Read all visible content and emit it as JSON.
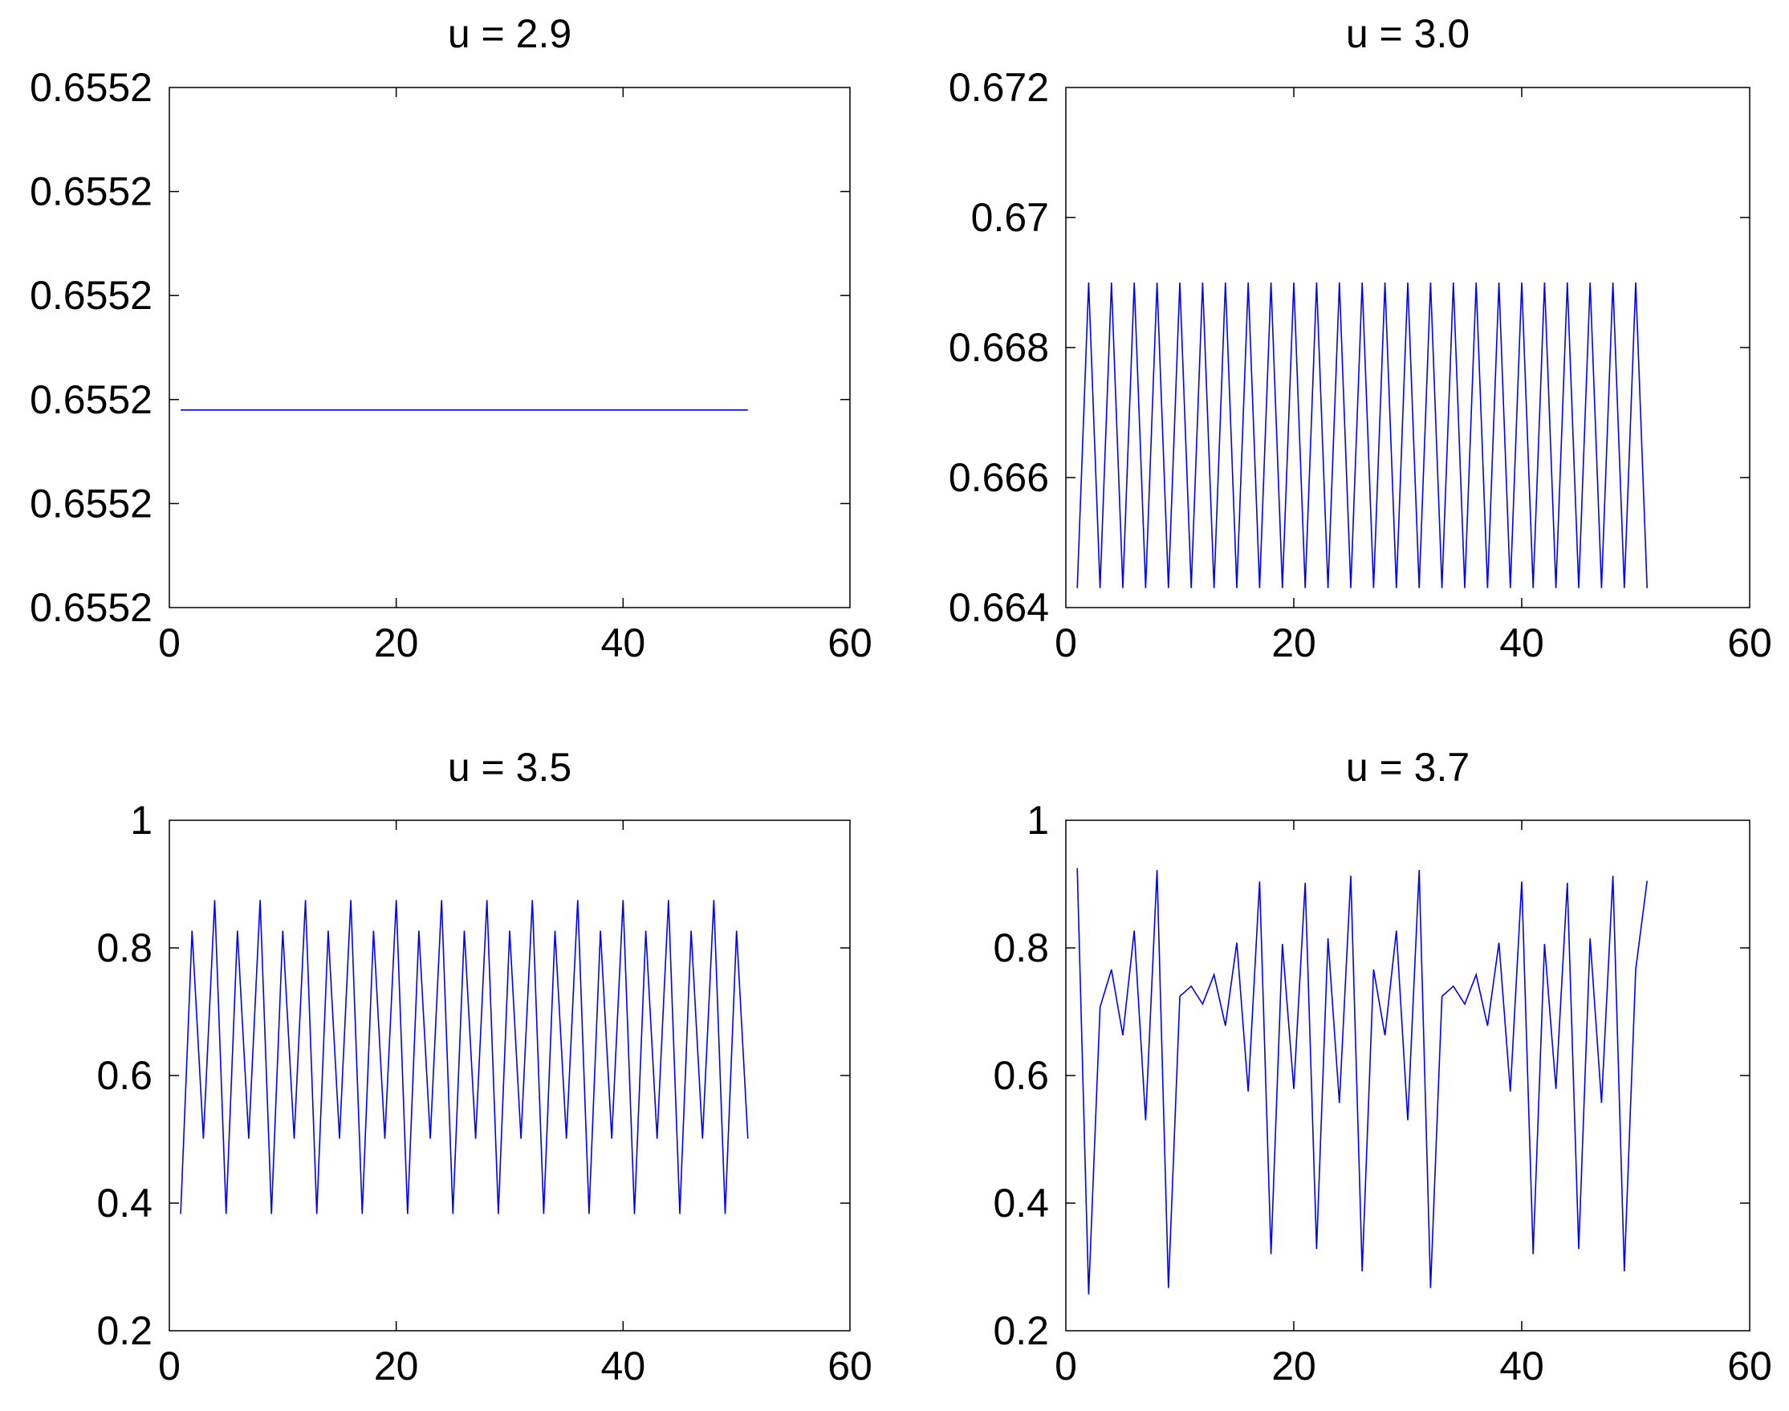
{
  "chart_data": [
    {
      "type": "line",
      "title": "u = 2.9",
      "xlim": [
        0,
        60
      ],
      "ylim": [
        0,
        5
      ],
      "xticks": [
        0,
        20,
        40,
        60
      ],
      "xtick_labels": [
        "0",
        "20",
        "40",
        "60"
      ],
      "yticks": [
        0,
        1,
        2,
        3,
        4,
        5
      ],
      "ytick_labels": [
        "0.6552",
        "0.6552",
        "0.6552",
        "0.6552",
        "0.6552",
        "0.6552"
      ],
      "grid": false,
      "series_color": "#0000ff",
      "x": [
        1,
        51
      ],
      "y": [
        1.9,
        1.9
      ]
    },
    {
      "type": "line",
      "title": "u = 3.0",
      "xlim": [
        0,
        60
      ],
      "ylim": [
        0.664,
        0.672
      ],
      "xticks": [
        0,
        20,
        40,
        60
      ],
      "xtick_labels": [
        "0",
        "20",
        "40",
        "60"
      ],
      "yticks": [
        0.664,
        0.666,
        0.668,
        0.67,
        0.672
      ],
      "ytick_labels": [
        "0.664",
        "0.666",
        "0.668",
        "0.67",
        "0.672"
      ],
      "grid": false,
      "series_color": "#0000ff",
      "x": [
        1,
        2,
        3,
        4,
        5,
        6,
        7,
        8,
        9,
        10,
        11,
        12,
        13,
        14,
        15,
        16,
        17,
        18,
        19,
        20,
        21,
        22,
        23,
        24,
        25,
        26,
        27,
        28,
        29,
        30,
        31,
        32,
        33,
        34,
        35,
        36,
        37,
        38,
        39,
        40,
        41,
        42,
        43,
        44,
        45,
        46,
        47,
        48,
        49,
        50,
        51
      ],
      "y": [
        0.6643,
        0.669,
        0.6643,
        0.669,
        0.6643,
        0.669,
        0.6643,
        0.669,
        0.6643,
        0.669,
        0.6643,
        0.669,
        0.6643,
        0.669,
        0.6643,
        0.669,
        0.6643,
        0.669,
        0.6643,
        0.669,
        0.6643,
        0.669,
        0.6643,
        0.669,
        0.6643,
        0.669,
        0.6643,
        0.669,
        0.6643,
        0.669,
        0.6643,
        0.669,
        0.6643,
        0.669,
        0.6643,
        0.669,
        0.6643,
        0.669,
        0.6643,
        0.669,
        0.6643,
        0.669,
        0.6643,
        0.669,
        0.6643,
        0.669,
        0.6643,
        0.669,
        0.6643,
        0.669,
        0.6643
      ]
    },
    {
      "type": "line",
      "title": "u = 3.5",
      "xlim": [
        0,
        60
      ],
      "ylim": [
        0.2,
        1
      ],
      "xticks": [
        0,
        20,
        40,
        60
      ],
      "xtick_labels": [
        "0",
        "20",
        "40",
        "60"
      ],
      "yticks": [
        0.2,
        0.4,
        0.6,
        0.8,
        1
      ],
      "ytick_labels": [
        "0.2",
        "0.4",
        "0.6",
        "0.8",
        "1"
      ],
      "grid": false,
      "series_color": "#0000ff",
      "x": [
        1,
        2,
        3,
        4,
        5,
        6,
        7,
        8,
        9,
        10,
        11,
        12,
        13,
        14,
        15,
        16,
        17,
        18,
        19,
        20,
        21,
        22,
        23,
        24,
        25,
        26,
        27,
        28,
        29,
        30,
        31,
        32,
        33,
        34,
        35,
        36,
        37,
        38,
        39,
        40,
        41,
        42,
        43,
        44,
        45,
        46,
        47,
        48,
        49,
        50,
        51
      ],
      "y": [
        0.383,
        0.827,
        0.501,
        0.875,
        0.383,
        0.827,
        0.501,
        0.875,
        0.383,
        0.827,
        0.501,
        0.875,
        0.383,
        0.827,
        0.501,
        0.875,
        0.383,
        0.827,
        0.501,
        0.875,
        0.383,
        0.827,
        0.501,
        0.875,
        0.383,
        0.827,
        0.501,
        0.875,
        0.383,
        0.827,
        0.501,
        0.875,
        0.383,
        0.827,
        0.501,
        0.875,
        0.383,
        0.827,
        0.501,
        0.875,
        0.383,
        0.827,
        0.501,
        0.875,
        0.383,
        0.827,
        0.501,
        0.875,
        0.383,
        0.827,
        0.501
      ]
    },
    {
      "type": "line",
      "title": "u = 3.7",
      "xlim": [
        0,
        60
      ],
      "ylim": [
        0.2,
        1
      ],
      "xticks": [
        0,
        20,
        40,
        60
      ],
      "xtick_labels": [
        "0",
        "20",
        "40",
        "60"
      ],
      "yticks": [
        0.2,
        0.4,
        0.6,
        0.8,
        1
      ],
      "ytick_labels": [
        "0.2",
        "0.4",
        "0.6",
        "0.8",
        "1"
      ],
      "grid": false,
      "series_color": "#0000ff",
      "x": [
        1,
        2,
        3,
        4,
        5,
        6,
        7,
        8,
        9,
        10,
        11,
        12,
        13,
        14,
        15,
        16,
        17,
        18,
        19,
        20,
        21,
        22,
        23,
        24,
        25,
        26,
        27,
        28,
        29,
        30,
        31,
        32,
        33,
        34,
        35,
        36,
        37,
        38,
        39,
        40,
        41,
        42,
        43,
        44,
        45,
        46,
        47,
        48,
        49,
        50,
        51
      ],
      "y": [
        0.925,
        0.257,
        0.707,
        0.766,
        0.663,
        0.827,
        0.53,
        0.922,
        0.267,
        0.724,
        0.74,
        0.712,
        0.758,
        0.678,
        0.808,
        0.575,
        0.904,
        0.32,
        0.806,
        0.579,
        0.902,
        0.328,
        0.815,
        0.557,
        0.913,
        0.293,
        0.766,
        0.663,
        0.827,
        0.53,
        0.922,
        0.267,
        0.724,
        0.74,
        0.712,
        0.758,
        0.678,
        0.808,
        0.575,
        0.904,
        0.32,
        0.806,
        0.579,
        0.902,
        0.328,
        0.815,
        0.557,
        0.913,
        0.293,
        0.766,
        0.905
      ]
    }
  ]
}
